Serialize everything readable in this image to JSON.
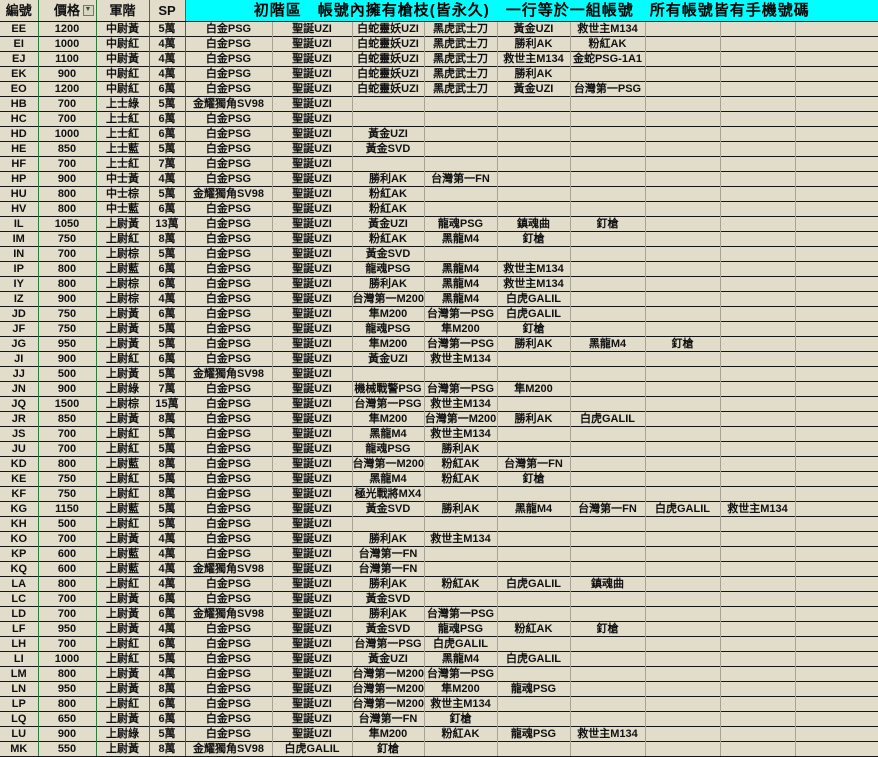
{
  "table": {
    "columns": [
      "編號",
      "價格",
      "軍階",
      "SP"
    ],
    "banner": "初階區　帳號內擁有槍枝(皆永久)　一行等於一組帳號　所有帳號皆有手機號碼",
    "colors": {
      "banner_bg": "#00ffff",
      "cell_bg": "#e2ddcb",
      "left_divider": "#2e7d3c",
      "gun_divider": "#a6a294",
      "row_border": "#151515",
      "text": "#111111"
    },
    "icons": {
      "price_filter": "filter-dropdown-icon",
      "price_filter_glyph": "▼"
    },
    "rows": [
      {
        "id": "EE",
        "price": "1200",
        "rank": "中尉黃",
        "sp": "5萬",
        "guns": [
          "白金PSG",
          "聖誕UZI",
          "白蛇靈妖UZI",
          "黑虎武士刀",
          "黃金UZI",
          "救世主M134",
          "",
          "",
          ""
        ]
      },
      {
        "id": "EI",
        "price": "1000",
        "rank": "中尉紅",
        "sp": "4萬",
        "guns": [
          "白金PSG",
          "聖誕UZI",
          "白蛇靈妖UZI",
          "黑虎武士刀",
          "勝利AK",
          "粉紅AK",
          "",
          "",
          ""
        ]
      },
      {
        "id": "EJ",
        "price": "1100",
        "rank": "中尉黃",
        "sp": "4萬",
        "guns": [
          "白金PSG",
          "聖誕UZI",
          "白蛇靈妖UZI",
          "黑虎武士刀",
          "救世主M134",
          "金蛇PSG-1A1",
          "",
          "",
          ""
        ]
      },
      {
        "id": "EK",
        "price": "900",
        "rank": "中尉紅",
        "sp": "4萬",
        "guns": [
          "白金PSG",
          "聖誕UZI",
          "白蛇靈妖UZI",
          "黑虎武士刀",
          "勝利AK",
          "",
          "",
          "",
          ""
        ]
      },
      {
        "id": "EO",
        "price": "1200",
        "rank": "中尉紅",
        "sp": "6萬",
        "guns": [
          "白金PSG",
          "聖誕UZI",
          "白蛇靈妖UZI",
          "黑虎武士刀",
          "黃金UZI",
          "台灣第一PSG",
          "",
          "",
          ""
        ]
      },
      {
        "id": "HB",
        "price": "700",
        "rank": "上士綠",
        "sp": "5萬",
        "guns": [
          "金耀獨角SV98",
          "聖誕UZI",
          "",
          "",
          "",
          "",
          "",
          "",
          ""
        ]
      },
      {
        "id": "HC",
        "price": "700",
        "rank": "上士紅",
        "sp": "6萬",
        "guns": [
          "白金PSG",
          "聖誕UZI",
          "",
          "",
          "",
          "",
          "",
          "",
          ""
        ]
      },
      {
        "id": "HD",
        "price": "1000",
        "rank": "上士紅",
        "sp": "6萬",
        "guns": [
          "白金PSG",
          "聖誕UZI",
          "黃金UZI",
          "",
          "",
          "",
          "",
          "",
          ""
        ]
      },
      {
        "id": "HE",
        "price": "850",
        "rank": "上士藍",
        "sp": "5萬",
        "guns": [
          "白金PSG",
          "聖誕UZI",
          "黃金SVD",
          "",
          "",
          "",
          "",
          "",
          ""
        ]
      },
      {
        "id": "HF",
        "price": "700",
        "rank": "上士紅",
        "sp": "7萬",
        "guns": [
          "白金PSG",
          "聖誕UZI",
          "",
          "",
          "",
          "",
          "",
          "",
          ""
        ]
      },
      {
        "id": "HP",
        "price": "900",
        "rank": "中士黃",
        "sp": "4萬",
        "guns": [
          "白金PSG",
          "聖誕UZI",
          "勝利AK",
          "台灣第一FN",
          "",
          "",
          "",
          "",
          ""
        ]
      },
      {
        "id": "HU",
        "price": "800",
        "rank": "中士棕",
        "sp": "5萬",
        "guns": [
          "金耀獨角SV98",
          "聖誕UZI",
          "粉紅AK",
          "",
          "",
          "",
          "",
          "",
          ""
        ]
      },
      {
        "id": "HV",
        "price": "800",
        "rank": "中士藍",
        "sp": "6萬",
        "guns": [
          "白金PSG",
          "聖誕UZI",
          "粉紅AK",
          "",
          "",
          "",
          "",
          "",
          ""
        ]
      },
      {
        "id": "IL",
        "price": "1050",
        "rank": "上尉黃",
        "sp": "13萬",
        "guns": [
          "白金PSG",
          "聖誕UZI",
          "黃金UZI",
          "龍魂PSG",
          "鎮魂曲",
          "釘槍",
          "",
          "",
          ""
        ]
      },
      {
        "id": "IM",
        "price": "750",
        "rank": "上尉紅",
        "sp": "8萬",
        "guns": [
          "白金PSG",
          "聖誕UZI",
          "粉紅AK",
          "黑龍M4",
          "釘槍",
          "",
          "",
          "",
          ""
        ]
      },
      {
        "id": "IN",
        "price": "700",
        "rank": "上尉棕",
        "sp": "5萬",
        "guns": [
          "白金PSG",
          "聖誕UZI",
          "黃金SVD",
          "",
          "",
          "",
          "",
          "",
          ""
        ]
      },
      {
        "id": "IP",
        "price": "800",
        "rank": "上尉藍",
        "sp": "6萬",
        "guns": [
          "白金PSG",
          "聖誕UZI",
          "龍魂PSG",
          "黑龍M4",
          "救世主M134",
          "",
          "",
          "",
          ""
        ]
      },
      {
        "id": "IY",
        "price": "800",
        "rank": "上尉棕",
        "sp": "6萬",
        "guns": [
          "白金PSG",
          "聖誕UZI",
          "勝利AK",
          "黑龍M4",
          "救世主M134",
          "",
          "",
          "",
          ""
        ]
      },
      {
        "id": "IZ",
        "price": "900",
        "rank": "上尉棕",
        "sp": "4萬",
        "guns": [
          "白金PSG",
          "聖誕UZI",
          "台灣第一M200",
          "黑龍M4",
          "白虎GALIL",
          "",
          "",
          "",
          ""
        ]
      },
      {
        "id": "JD",
        "price": "750",
        "rank": "上尉黃",
        "sp": "6萬",
        "guns": [
          "白金PSG",
          "聖誕UZI",
          "隼M200",
          "台灣第一PSG",
          "白虎GALIL",
          "",
          "",
          "",
          ""
        ]
      },
      {
        "id": "JF",
        "price": "750",
        "rank": "上尉黃",
        "sp": "5萬",
        "guns": [
          "白金PSG",
          "聖誕UZI",
          "龍魂PSG",
          "隼M200",
          "釘槍",
          "",
          "",
          "",
          ""
        ]
      },
      {
        "id": "JG",
        "price": "950",
        "rank": "上尉黃",
        "sp": "5萬",
        "guns": [
          "白金PSG",
          "聖誕UZI",
          "隼M200",
          "台灣第一PSG",
          "勝利AK",
          "黑龍M4",
          "釘槍",
          "",
          ""
        ]
      },
      {
        "id": "JI",
        "price": "900",
        "rank": "上尉紅",
        "sp": "6萬",
        "guns": [
          "白金PSG",
          "聖誕UZI",
          "黃金UZI",
          "救世主M134",
          "",
          "",
          "",
          "",
          ""
        ]
      },
      {
        "id": "JJ",
        "price": "500",
        "rank": "上尉黃",
        "sp": "5萬",
        "guns": [
          "金耀獨角SV98",
          "聖誕UZI",
          "",
          "",
          "",
          "",
          "",
          "",
          ""
        ]
      },
      {
        "id": "JN",
        "price": "900",
        "rank": "上尉綠",
        "sp": "7萬",
        "guns": [
          "白金PSG",
          "聖誕UZI",
          "機械戰警PSG",
          "台灣第一PSG",
          "隼M200",
          "",
          "",
          "",
          ""
        ]
      },
      {
        "id": "JQ",
        "price": "1500",
        "rank": "上尉棕",
        "sp": "15萬",
        "guns": [
          "白金PSG",
          "聖誕UZI",
          "台灣第一PSG",
          "救世主M134",
          "",
          "",
          "",
          "",
          ""
        ]
      },
      {
        "id": "JR",
        "price": "850",
        "rank": "上尉黃",
        "sp": "8萬",
        "guns": [
          "白金PSG",
          "聖誕UZI",
          "隼M200",
          "台灣第一M200",
          "勝利AK",
          "白虎GALIL",
          "",
          "",
          ""
        ]
      },
      {
        "id": "JS",
        "price": "700",
        "rank": "上尉紅",
        "sp": "5萬",
        "guns": [
          "白金PSG",
          "聖誕UZI",
          "黑龍M4",
          "救世主M134",
          "",
          "",
          "",
          "",
          ""
        ]
      },
      {
        "id": "JU",
        "price": "700",
        "rank": "上尉紅",
        "sp": "5萬",
        "guns": [
          "白金PSG",
          "聖誕UZI",
          "龍魂PSG",
          "勝利AK",
          "",
          "",
          "",
          "",
          ""
        ]
      },
      {
        "id": "KD",
        "price": "800",
        "rank": "上尉藍",
        "sp": "8萬",
        "guns": [
          "白金PSG",
          "聖誕UZI",
          "台灣第一M200",
          "粉紅AK",
          "台灣第一FN",
          "",
          "",
          "",
          ""
        ]
      },
      {
        "id": "KE",
        "price": "750",
        "rank": "上尉紅",
        "sp": "5萬",
        "guns": [
          "白金PSG",
          "聖誕UZI",
          "黑龍M4",
          "粉紅AK",
          "釘槍",
          "",
          "",
          "",
          ""
        ]
      },
      {
        "id": "KF",
        "price": "750",
        "rank": "上尉紅",
        "sp": "8萬",
        "guns": [
          "白金PSG",
          "聖誕UZI",
          "極光戰將MX4",
          "",
          "",
          "",
          "",
          "",
          ""
        ]
      },
      {
        "id": "KG",
        "price": "1150",
        "rank": "上尉藍",
        "sp": "5萬",
        "guns": [
          "白金PSG",
          "聖誕UZI",
          "黃金SVD",
          "勝利AK",
          "黑龍M4",
          "台灣第一FN",
          "白虎GALIL",
          "救世主M134",
          ""
        ]
      },
      {
        "id": "KH",
        "price": "500",
        "rank": "上尉紅",
        "sp": "5萬",
        "guns": [
          "白金PSG",
          "聖誕UZI",
          "",
          "",
          "",
          "",
          "",
          "",
          ""
        ]
      },
      {
        "id": "KO",
        "price": "700",
        "rank": "上尉黃",
        "sp": "4萬",
        "guns": [
          "白金PSG",
          "聖誕UZI",
          "勝利AK",
          "救世主M134",
          "",
          "",
          "",
          "",
          ""
        ]
      },
      {
        "id": "KP",
        "price": "600",
        "rank": "上尉藍",
        "sp": "4萬",
        "guns": [
          "白金PSG",
          "聖誕UZI",
          "台灣第一FN",
          "",
          "",
          "",
          "",
          "",
          ""
        ]
      },
      {
        "id": "KQ",
        "price": "600",
        "rank": "上尉藍",
        "sp": "4萬",
        "guns": [
          "金耀獨角SV98",
          "聖誕UZI",
          "台灣第一FN",
          "",
          "",
          "",
          "",
          "",
          ""
        ]
      },
      {
        "id": "LA",
        "price": "800",
        "rank": "上尉紅",
        "sp": "4萬",
        "guns": [
          "白金PSG",
          "聖誕UZI",
          "勝利AK",
          "粉紅AK",
          "白虎GALIL",
          "鎮魂曲",
          "",
          "",
          ""
        ]
      },
      {
        "id": "LC",
        "price": "700",
        "rank": "上尉黃",
        "sp": "6萬",
        "guns": [
          "白金PSG",
          "聖誕UZI",
          "黃金SVD",
          "",
          "",
          "",
          "",
          "",
          ""
        ]
      },
      {
        "id": "LD",
        "price": "700",
        "rank": "上尉黃",
        "sp": "6萬",
        "guns": [
          "金耀獨角SV98",
          "聖誕UZI",
          "勝利AK",
          "台灣第一PSG",
          "",
          "",
          "",
          "",
          ""
        ]
      },
      {
        "id": "LF",
        "price": "950",
        "rank": "上尉黃",
        "sp": "4萬",
        "guns": [
          "白金PSG",
          "聖誕UZI",
          "黃金SVD",
          "龍魂PSG",
          "粉紅AK",
          "釘槍",
          "",
          "",
          ""
        ]
      },
      {
        "id": "LH",
        "price": "700",
        "rank": "上尉紅",
        "sp": "6萬",
        "guns": [
          "白金PSG",
          "聖誕UZI",
          "台灣第一PSG",
          "白虎GALIL",
          "",
          "",
          "",
          "",
          ""
        ]
      },
      {
        "id": "LI",
        "price": "1000",
        "rank": "上尉紅",
        "sp": "5萬",
        "guns": [
          "白金PSG",
          "聖誕UZI",
          "黃金UZI",
          "黑龍M4",
          "白虎GALIL",
          "",
          "",
          "",
          ""
        ]
      },
      {
        "id": "LM",
        "price": "800",
        "rank": "上尉黃",
        "sp": "4萬",
        "guns": [
          "白金PSG",
          "聖誕UZI",
          "台灣第一M200",
          "台灣第一PSG",
          "",
          "",
          "",
          "",
          ""
        ]
      },
      {
        "id": "LN",
        "price": "950",
        "rank": "上尉黃",
        "sp": "8萬",
        "guns": [
          "白金PSG",
          "聖誕UZI",
          "台灣第一M200",
          "隼M200",
          "龍魂PSG",
          "",
          "",
          "",
          ""
        ]
      },
      {
        "id": "LP",
        "price": "800",
        "rank": "上尉紅",
        "sp": "6萬",
        "guns": [
          "白金PSG",
          "聖誕UZI",
          "台灣第一M200",
          "救世主M134",
          "",
          "",
          "",
          "",
          ""
        ]
      },
      {
        "id": "LQ",
        "price": "650",
        "rank": "上尉黃",
        "sp": "6萬",
        "guns": [
          "白金PSG",
          "聖誕UZI",
          "台灣第一FN",
          "釘槍",
          "",
          "",
          "",
          "",
          ""
        ]
      },
      {
        "id": "LU",
        "price": "900",
        "rank": "上尉綠",
        "sp": "5萬",
        "guns": [
          "白金PSG",
          "聖誕UZI",
          "隼M200",
          "粉紅AK",
          "龍魂PSG",
          "救世主M134",
          "",
          "",
          ""
        ]
      },
      {
        "id": "MK",
        "price": "550",
        "rank": "上尉黃",
        "sp": "8萬",
        "guns": [
          "金耀獨角SV98",
          "白虎GALIL",
          "釘槍",
          "",
          "",
          "",
          "",
          "",
          ""
        ]
      }
    ]
  }
}
